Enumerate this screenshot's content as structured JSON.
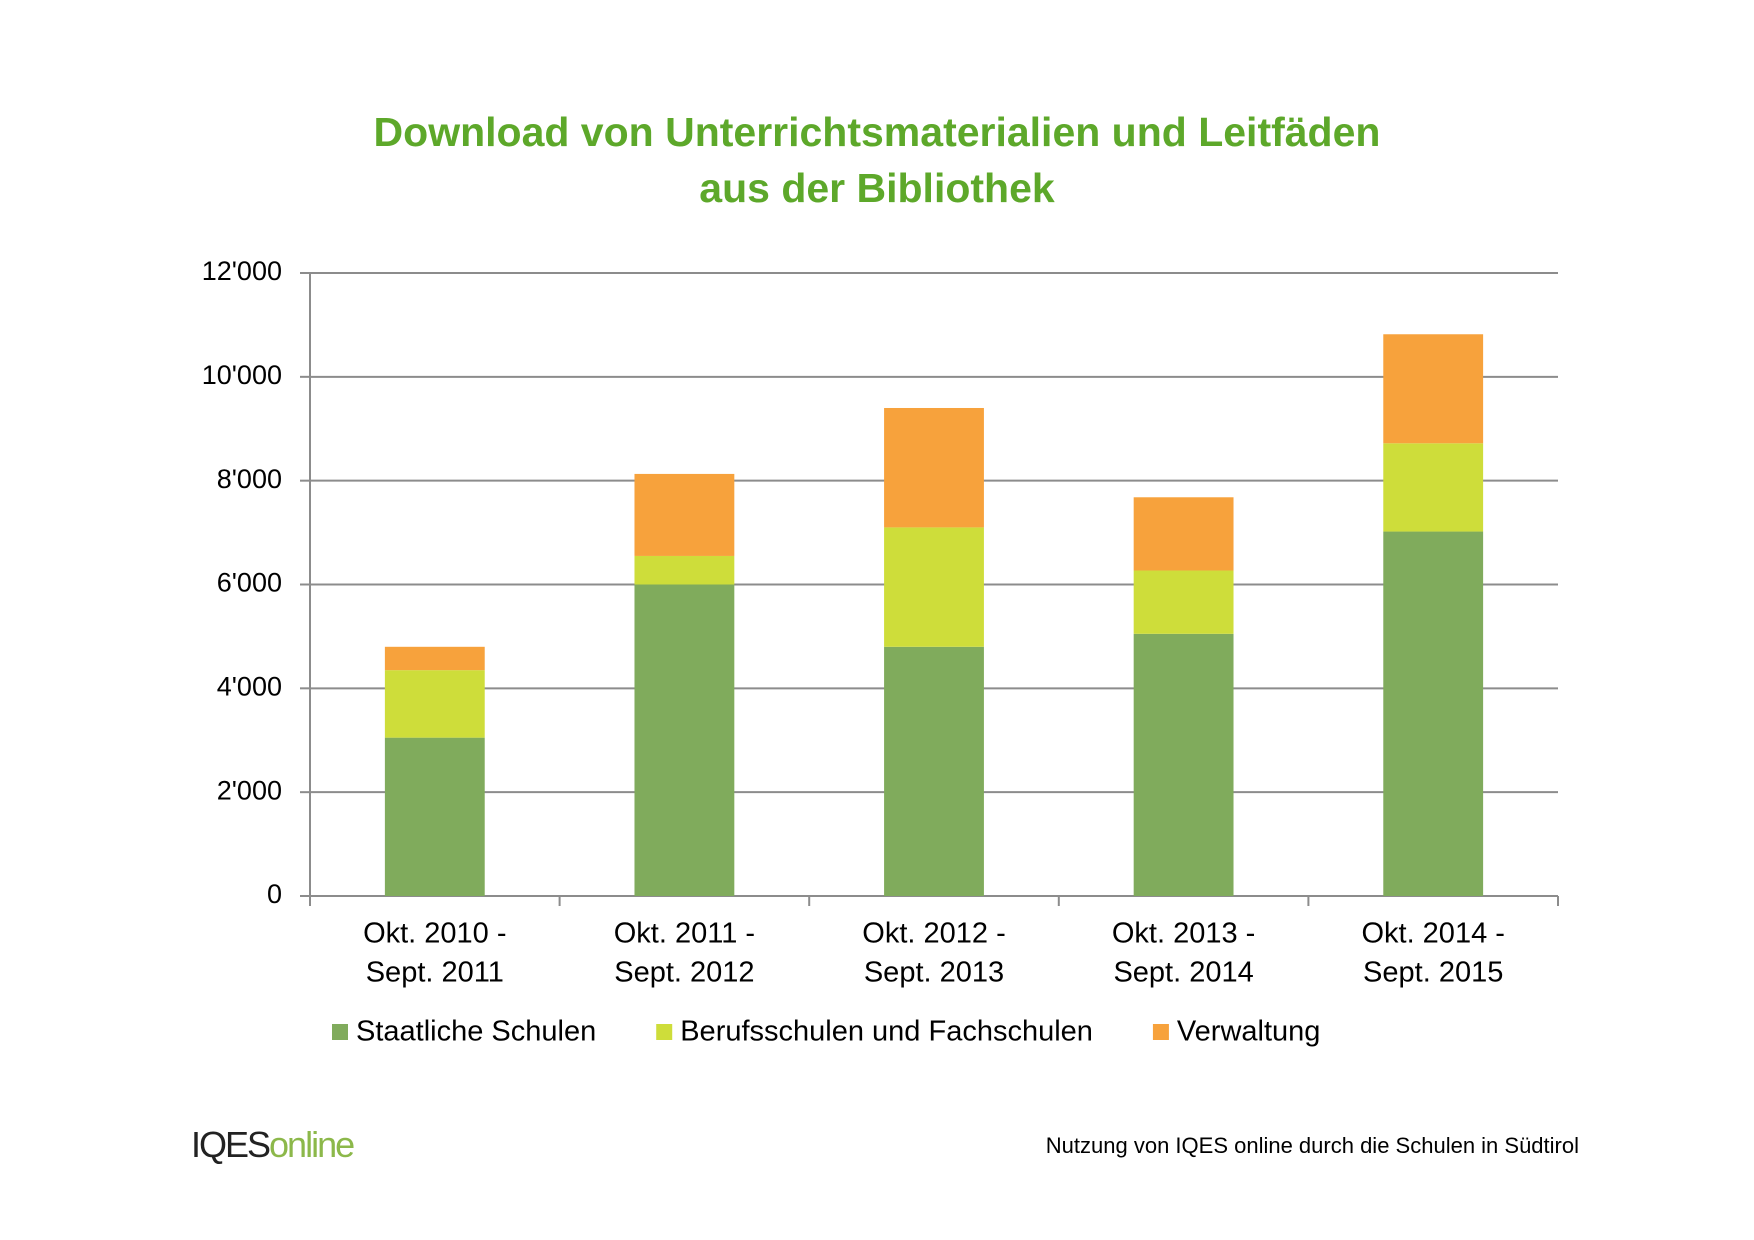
{
  "chart_data": {
    "type": "stacked_bar",
    "title": [
      "Download von Unterrichtsmaterialien und Leitfäden",
      "aus der Bibliothek"
    ],
    "categories": [
      [
        "Okt. 2010 -",
        "Sept. 2011"
      ],
      [
        "Okt. 2011 -",
        "Sept. 2012"
      ],
      [
        "Okt. 2012 -",
        "Sept. 2013"
      ],
      [
        "Okt. 2013 -",
        "Sept. 2014"
      ],
      [
        "Okt. 2014 -",
        "Sept. 2015"
      ]
    ],
    "series": [
      {
        "name": "Staatliche Schulen",
        "color": "#80ab5c",
        "values": [
          3050,
          6000,
          4800,
          5050,
          7020
        ]
      },
      {
        "name": "Berufsschulen und Fachschulen",
        "color": "#cedd3a",
        "values": [
          1300,
          550,
          2300,
          1220,
          1700
        ]
      },
      {
        "name": "Verwaltung",
        "color": "#f7a23c",
        "values": [
          450,
          1580,
          2300,
          1410,
          2100
        ]
      }
    ],
    "ylim": [
      0,
      12000
    ],
    "yticks": [
      0,
      {
        "value": 2000,
        "label": "2'000"
      },
      {
        "value": 4000,
        "label": "4'000"
      },
      {
        "value": 6000,
        "label": "6'000"
      },
      {
        "value": 8000,
        "label": "8'000"
      },
      {
        "value": 10000,
        "label": "10'000"
      },
      {
        "value": 12000,
        "label": "12'000"
      }
    ],
    "grid": true,
    "legend": "bottom"
  },
  "footer": {
    "logo": [
      "IQES",
      "online"
    ],
    "note": "Nutzung von IQES online durch die Schulen in Südtirol"
  }
}
